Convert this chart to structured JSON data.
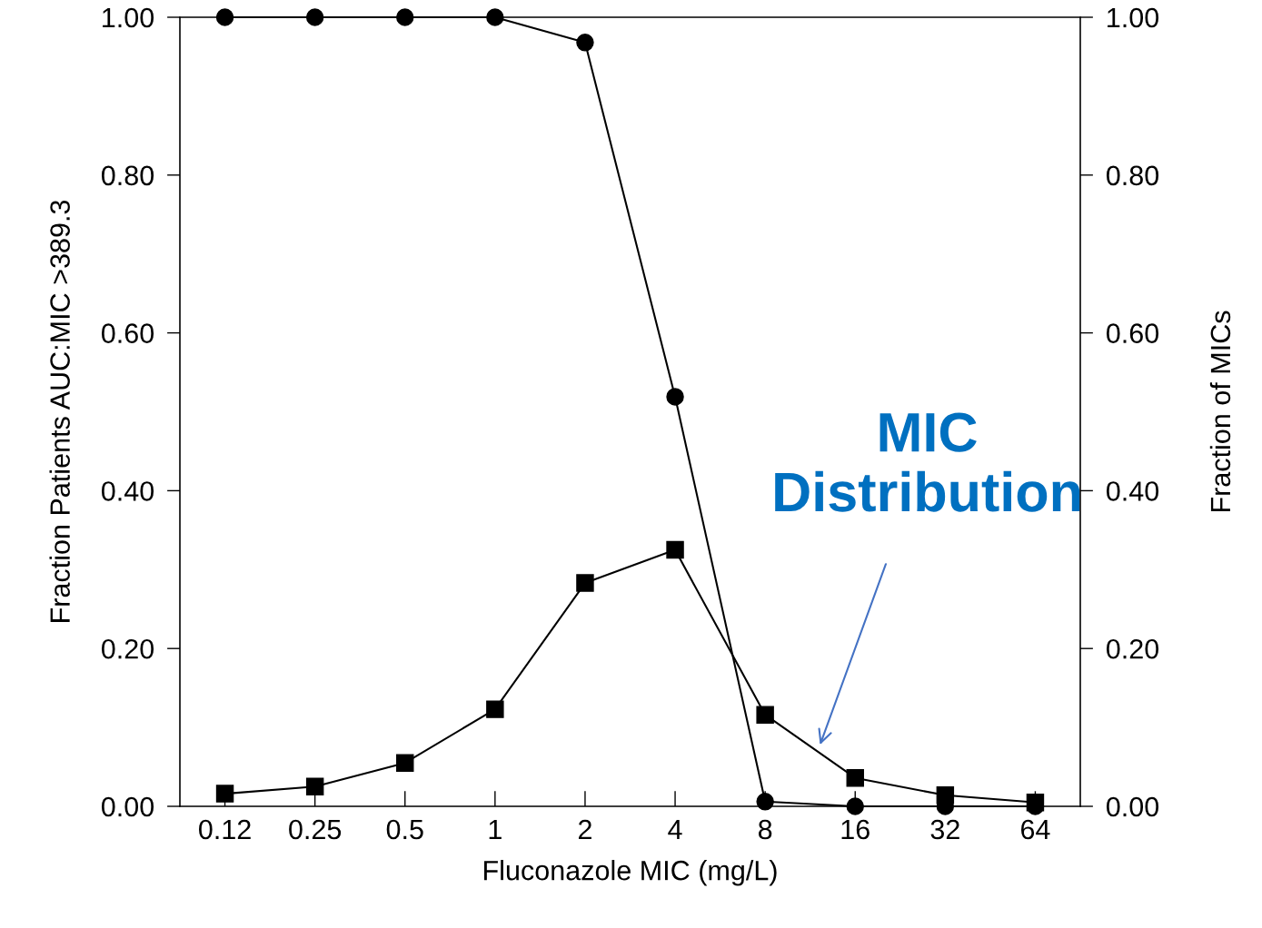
{
  "chart_data": {
    "type": "line",
    "xlabel": "Fluconazole MIC (mg/L)",
    "ylabel": "Fraction Patients AUC:MIC >389.3",
    "y2label": "Fraction of MICs",
    "categories": [
      "0.12",
      "0.25",
      "0.5",
      "1",
      "2",
      "4",
      "8",
      "16",
      "32",
      "64"
    ],
    "series": [
      {
        "color": "#000000",
        "marker": "circle",
        "values": [
          1.0,
          1.0,
          1.0,
          1.0,
          0.968,
          0.519,
          0.006,
          0.0,
          0.0,
          0.0
        ]
      },
      {
        "color": "#000000",
        "marker": "square",
        "values": [
          0.016,
          0.025,
          0.055,
          0.123,
          0.283,
          0.325,
          0.116,
          0.036,
          0.014,
          0.005
        ]
      }
    ],
    "ylim": [
      0,
      1
    ],
    "yticks": [
      {
        "value": 0,
        "label": "0.00"
      },
      {
        "value": 0.2,
        "label": "0.20"
      },
      {
        "value": 0.4,
        "label": "0.40"
      },
      {
        "value": 0.6,
        "label": "0.60"
      },
      {
        "value": 0.8,
        "label": "0.80"
      },
      {
        "value": 1,
        "label": "1.00"
      }
    ],
    "y2lim": [
      0,
      1
    ],
    "y2ticks": [
      {
        "value": 0,
        "label": "0.00"
      },
      {
        "value": 0.2,
        "label": "0.20"
      },
      {
        "value": 0.4,
        "label": "0.40"
      },
      {
        "value": 0.6,
        "label": "0.60"
      },
      {
        "value": 0.8,
        "label": "0.80"
      },
      {
        "value": 1,
        "label": "1.00"
      }
    ],
    "annotations": [
      "MIC\nDistribution"
    ],
    "grid": false,
    "legend": false,
    "line_style": "solid"
  }
}
